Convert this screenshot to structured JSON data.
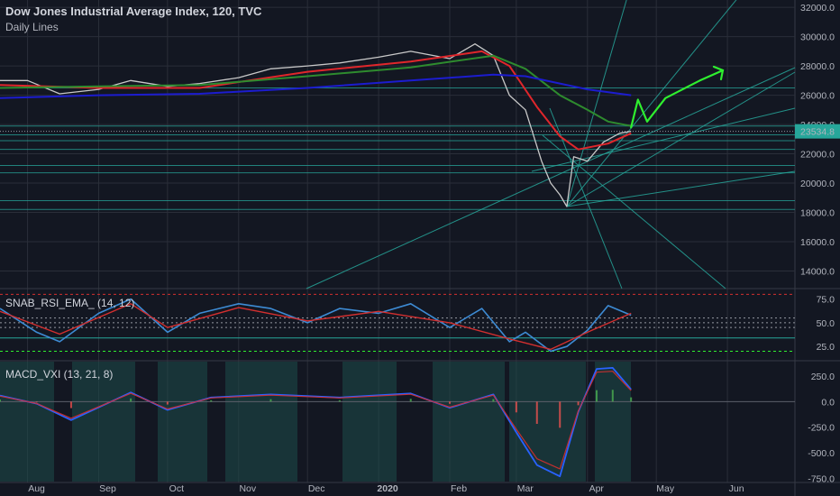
{
  "header": {
    "title": "Dow Jones Industrial Average Index, 120, TVC",
    "subtitle": "Daily Lines"
  },
  "price_badge": "23534.8",
  "indicators": {
    "rsi_label": "SNAB_RSI_EMA_ (14, 12)",
    "macd_label": "MACD_VXI (13, 21, 8)"
  },
  "colors": {
    "background": "#131722",
    "grid": "#2a2e39",
    "candles": "#c8c8c8",
    "ma_red": "#e0262b",
    "ma_green": "#2e8b2e",
    "ma_blue": "#1c1ccf",
    "levels": "#26a69a",
    "projection": "#2fef2f",
    "rsi_line": "#3d8bd4",
    "rsi_ema": "#d32f2f",
    "price_badge": "#26a69a"
  },
  "chart_data": [
    {
      "type": "line",
      "title": "Dow Jones Industrial Average Index, 120, TVC",
      "subtitle": "Daily Lines",
      "x_ticks": [
        "Aug",
        "Sep",
        "Oct",
        "Nov",
        "Dec",
        "2020",
        "Feb",
        "Mar",
        "Apr",
        "May",
        "Jun"
      ],
      "y_ticks": [
        "32000.0",
        "30000.0",
        "28000.0",
        "26000.0",
        "24000.0",
        "22000.0",
        "20000.0",
        "18000.0",
        "16000.0",
        "14000.0"
      ],
      "ylim": [
        12800,
        32500
      ],
      "last_price": 23534.8,
      "series": [
        {
          "kind": "price",
          "x": [
            "2019-07-20",
            "2019-08-01",
            "2019-08-15",
            "2019-09-01",
            "2019-09-15",
            "2019-10-01",
            "2019-10-15",
            "2019-11-01",
            "2019-11-15",
            "2019-12-01",
            "2019-12-15",
            "2020-01-01",
            "2020-01-15",
            "2020-02-01",
            "2020-02-12",
            "2020-02-20",
            "2020-02-27",
            "2020-03-05",
            "2020-03-12",
            "2020-03-16",
            "2020-03-20",
            "2020-03-23",
            "2020-03-26",
            "2020-04-01",
            "2020-04-08",
            "2020-04-15",
            "2020-04-20"
          ],
          "y": [
            27000,
            27000,
            26100,
            26400,
            27000,
            26600,
            26800,
            27200,
            27800,
            28000,
            28200,
            28600,
            29000,
            28500,
            29500,
            28700,
            26000,
            25000,
            21500,
            20000,
            19200,
            18400,
            21800,
            21500,
            22800,
            23400,
            23534.8
          ]
        },
        {
          "kind": "ma",
          "color": "red",
          "x": [
            "2019-07-20",
            "2019-09-01",
            "2019-10-15",
            "2019-12-01",
            "2020-01-15",
            "2020-02-15",
            "2020-02-27",
            "2020-03-10",
            "2020-03-20",
            "2020-03-28",
            "2020-04-10",
            "2020-04-20"
          ],
          "y": [
            26700,
            26500,
            26500,
            27600,
            28300,
            29000,
            28000,
            25200,
            23200,
            22300,
            22700,
            23400
          ]
        },
        {
          "kind": "ma",
          "color": "green",
          "x": [
            "2019-07-20",
            "2019-09-01",
            "2019-10-15",
            "2019-12-01",
            "2020-01-15",
            "2020-02-20",
            "2020-03-05",
            "2020-03-20",
            "2020-04-01",
            "2020-04-10",
            "2020-04-20"
          ],
          "y": [
            26500,
            26600,
            26700,
            27300,
            27900,
            28700,
            27800,
            26000,
            25000,
            24200,
            23900
          ]
        },
        {
          "kind": "ma",
          "color": "blue",
          "x": [
            "2019-07-20",
            "2019-09-01",
            "2019-10-15",
            "2019-12-01",
            "2020-01-15",
            "2020-02-20",
            "2020-03-05",
            "2020-03-20",
            "2020-04-01",
            "2020-04-20"
          ],
          "y": [
            25800,
            26000,
            26100,
            26500,
            27000,
            27400,
            27300,
            26800,
            26400,
            26000
          ]
        },
        {
          "kind": "projection",
          "x": [
            "2020-04-20",
            "2020-04-23",
            "2020-04-27",
            "2020-05-05",
            "2020-05-20",
            "2020-05-30"
          ],
          "y": [
            23800,
            25700,
            24200,
            25800,
            27000,
            27700
          ]
        }
      ],
      "horizontal_levels": [
        26500,
        23900,
        23300,
        22900,
        22300,
        21200,
        20700,
        18800,
        18200
      ]
    },
    {
      "type": "line",
      "title": "SNAB_RSI_EMA_ (14, 12)",
      "y_ticks": [
        "75.0",
        "50.0",
        "25.0"
      ],
      "ylim": [
        10,
        86
      ],
      "reference_lines": [
        80,
        55,
        50,
        45,
        34,
        20
      ],
      "series": [
        {
          "kind": "rsi",
          "x": [
            "2019-07-20",
            "2019-08-05",
            "2019-08-15",
            "2019-09-01",
            "2019-09-15",
            "2019-10-01",
            "2019-10-15",
            "2019-11-01",
            "2019-11-15",
            "2019-12-01",
            "2019-12-15",
            "2020-01-01",
            "2020-01-15",
            "2020-02-01",
            "2020-02-15",
            "2020-02-27",
            "2020-03-05",
            "2020-03-16",
            "2020-03-23",
            "2020-04-01",
            "2020-04-10",
            "2020-04-20"
          ],
          "y": [
            65,
            40,
            30,
            60,
            75,
            40,
            60,
            70,
            65,
            50,
            65,
            60,
            70,
            45,
            65,
            30,
            40,
            20,
            25,
            42,
            68,
            58
          ]
        },
        {
          "kind": "ema",
          "x": [
            "2019-07-20",
            "2019-08-15",
            "2019-09-15",
            "2019-10-01",
            "2019-11-01",
            "2019-12-01",
            "2020-01-01",
            "2020-02-01",
            "2020-02-27",
            "2020-03-16",
            "2020-04-01",
            "2020-04-20"
          ],
          "y": [
            62,
            38,
            70,
            45,
            66,
            52,
            62,
            50,
            33,
            22,
            40,
            60
          ]
        }
      ]
    },
    {
      "type": "line",
      "title": "MACD_VXI (13, 21, 8)",
      "y_ticks": [
        "250.0",
        "0.0",
        "-250.0",
        "-500.0",
        "-750.0"
      ],
      "ylim": [
        -790,
        400
      ],
      "series": [
        {
          "kind": "macd",
          "x": [
            "2019-07-20",
            "2019-08-05",
            "2019-08-20",
            "2019-09-15",
            "2019-10-01",
            "2019-10-20",
            "2019-11-15",
            "2019-12-15",
            "2020-01-15",
            "2020-02-01",
            "2020-02-20",
            "2020-03-01",
            "2020-03-10",
            "2020-03-20",
            "2020-03-28",
            "2020-04-05",
            "2020-04-12",
            "2020-04-20"
          ],
          "y": [
            60,
            -20,
            -180,
            90,
            -80,
            40,
            70,
            40,
            80,
            -60,
            70,
            -300,
            -620,
            -730,
            -100,
            320,
            330,
            120
          ]
        }
      ]
    }
  ]
}
